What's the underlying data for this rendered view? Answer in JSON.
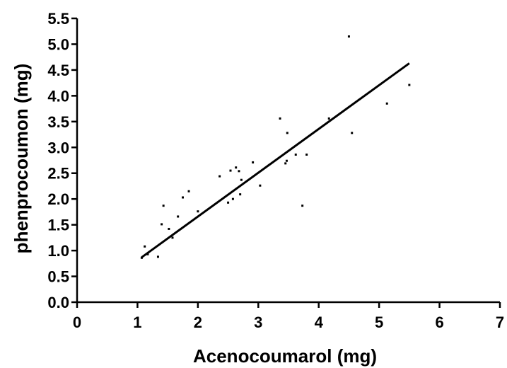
{
  "chart_data": {
    "type": "scatter",
    "xlabel": "Acenocoumarol (mg)",
    "ylabel": "phenprocoumon (mg)",
    "xlim": [
      0,
      7
    ],
    "ylim": [
      0,
      5.5
    ],
    "x_ticks": [
      "0",
      "1",
      "2",
      "3",
      "4",
      "5",
      "6",
      "7"
    ],
    "y_ticks": [
      "0.0",
      "0.5",
      "1.0",
      "1.5",
      "2.0",
      "2.5",
      "3.0",
      "3.5",
      "4.0",
      "4.5",
      "5.0",
      "5.5"
    ],
    "grid": false,
    "points": [
      {
        "x": 1.07,
        "y": 0.86
      },
      {
        "x": 1.12,
        "y": 1.08
      },
      {
        "x": 1.17,
        "y": 0.93
      },
      {
        "x": 1.34,
        "y": 0.88
      },
      {
        "x": 1.4,
        "y": 1.51
      },
      {
        "x": 1.43,
        "y": 1.87
      },
      {
        "x": 1.52,
        "y": 1.42
      },
      {
        "x": 1.58,
        "y": 1.25
      },
      {
        "x": 1.67,
        "y": 1.66
      },
      {
        "x": 1.75,
        "y": 2.03
      },
      {
        "x": 1.85,
        "y": 2.15
      },
      {
        "x": 2.0,
        "y": 1.76
      },
      {
        "x": 2.36,
        "y": 2.44
      },
      {
        "x": 2.5,
        "y": 1.93
      },
      {
        "x": 2.54,
        "y": 2.55
      },
      {
        "x": 2.58,
        "y": 2.0
      },
      {
        "x": 2.63,
        "y": 2.61
      },
      {
        "x": 2.68,
        "y": 2.54
      },
      {
        "x": 2.7,
        "y": 2.09
      },
      {
        "x": 2.72,
        "y": 2.37
      },
      {
        "x": 2.91,
        "y": 2.71
      },
      {
        "x": 3.03,
        "y": 2.26
      },
      {
        "x": 3.36,
        "y": 3.56
      },
      {
        "x": 3.45,
        "y": 2.69
      },
      {
        "x": 3.47,
        "y": 2.74
      },
      {
        "x": 3.48,
        "y": 3.28
      },
      {
        "x": 3.62,
        "y": 2.86
      },
      {
        "x": 3.73,
        "y": 1.87
      },
      {
        "x": 3.8,
        "y": 2.86
      },
      {
        "x": 4.17,
        "y": 3.56
      },
      {
        "x": 4.5,
        "y": 5.15
      },
      {
        "x": 4.55,
        "y": 3.28
      },
      {
        "x": 5.13,
        "y": 3.85
      },
      {
        "x": 5.5,
        "y": 4.21
      }
    ],
    "fit_line": {
      "x": [
        1.07,
        5.5
      ],
      "y": [
        0.87,
        4.63
      ]
    }
  }
}
